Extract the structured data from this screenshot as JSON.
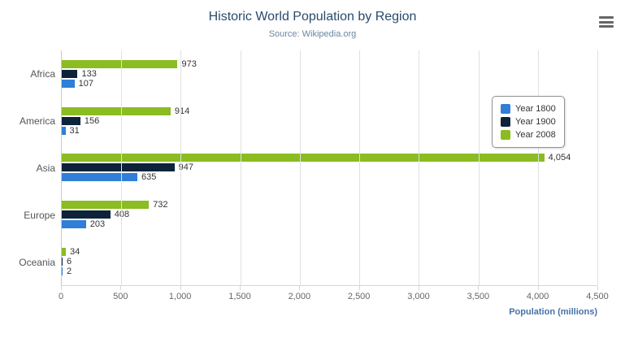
{
  "header": {
    "title": "Historic World Population by Region",
    "subtitle": "Source: Wikipedia.org"
  },
  "chart_data": {
    "type": "bar",
    "orientation": "horizontal",
    "title": "Historic World Population by Region",
    "subtitle": "Source: Wikipedia.org",
    "categories": [
      "Africa",
      "America",
      "Asia",
      "Europe",
      "Oceania"
    ],
    "series": [
      {
        "name": "Year 1800",
        "color": "#2f7ed8",
        "values": [
          107,
          31,
          635,
          203,
          2
        ]
      },
      {
        "name": "Year 1900",
        "color": "#0d233a",
        "values": [
          133,
          156,
          947,
          408,
          6
        ]
      },
      {
        "name": "Year 2008",
        "color": "#8bbc21",
        "values": [
          973,
          914,
          4054,
          732,
          34
        ]
      }
    ],
    "bar_order_top_to_bottom": [
      "Year 2008",
      "Year 1900",
      "Year 1800"
    ],
    "xlabel": "Population (millions)",
    "xlim": [
      0,
      4500
    ],
    "xticks": [
      0,
      500,
      1000,
      1500,
      2000,
      2500,
      3000,
      3500,
      4000,
      4500
    ],
    "grid": true,
    "legend_position": "right"
  },
  "menu": {
    "icon": "hamburger-menu"
  }
}
